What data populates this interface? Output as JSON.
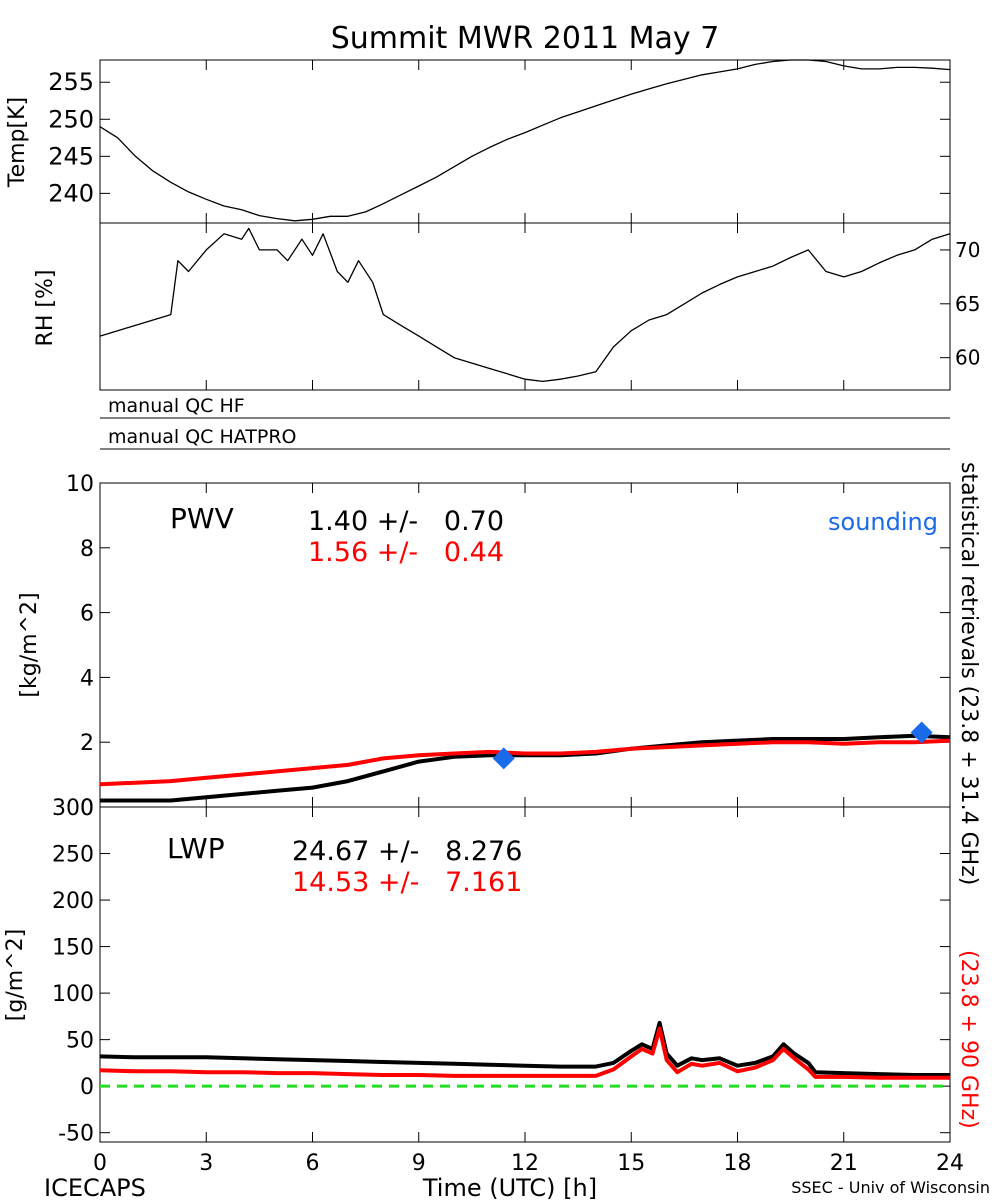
{
  "title": "Summit MWR 2011 May  7",
  "footer": {
    "left": "ICECAPS",
    "center": "Time (UTC) [h]",
    "right": "SSEC - Univ of Wisconsin"
  },
  "colors": {
    "black_series": "#000000",
    "red_series": "#ff0000",
    "sounding": "#1a6bea",
    "zero_line": "#22dd22"
  },
  "qc": {
    "hf_label": "manual  QC  HF",
    "hatpro_label": "manual  QC  HATPRO"
  },
  "side_labels": {
    "black": "statistical retrievals (23.8 + 31.4 GHz)",
    "red": "(23.8 + 90 GHz)"
  },
  "pwv_panel": {
    "name": "PWV",
    "black_stat": "1.40 +/-   0.70",
    "red_stat": "1.56 +/-   0.44",
    "sounding_label": "sounding"
  },
  "lwp_panel": {
    "name": "LWP",
    "black_stat": "24.67 +/-   8.276",
    "red_stat": "14.53 +/-   7.161"
  },
  "chart_data": [
    {
      "type": "line",
      "panel": "temperature",
      "ylabel": "Temp[K]",
      "ylim": [
        236,
        258
      ],
      "yticks": [
        240,
        245,
        250,
        255
      ],
      "xlim": [
        0,
        24
      ],
      "series": [
        {
          "color": "#000000",
          "points": [
            [
              0,
              249
            ],
            [
              0.5,
              247.5
            ],
            [
              1,
              245
            ],
            [
              1.5,
              243
            ],
            [
              2,
              241.5
            ],
            [
              2.5,
              240.2
            ],
            [
              3,
              239.2
            ],
            [
              3.5,
              238.3
            ],
            [
              4,
              237.8
            ],
            [
              4.5,
              237
            ],
            [
              5,
              236.6
            ],
            [
              5.5,
              236.3
            ],
            [
              6,
              236.5
            ],
            [
              6.5,
              236.9
            ],
            [
              7,
              236.9
            ],
            [
              7.5,
              237.5
            ],
            [
              8,
              238.6
            ],
            [
              8.5,
              239.8
            ],
            [
              9,
              241
            ],
            [
              9.5,
              242.2
            ],
            [
              10,
              243.6
            ],
            [
              10.5,
              245
            ],
            [
              11,
              246.2
            ],
            [
              11.5,
              247.3
            ],
            [
              12,
              248.2
            ],
            [
              12.5,
              249.2
            ],
            [
              13,
              250.2
            ],
            [
              13.5,
              251
            ],
            [
              14,
              251.8
            ],
            [
              14.5,
              252.6
            ],
            [
              15,
              253.4
            ],
            [
              15.5,
              254.1
            ],
            [
              16,
              254.8
            ],
            [
              16.5,
              255.4
            ],
            [
              17,
              256
            ],
            [
              17.5,
              256.4
            ],
            [
              18,
              256.8
            ],
            [
              18.5,
              257.4
            ],
            [
              19,
              257.8
            ],
            [
              19.5,
              258
            ],
            [
              20,
              258
            ],
            [
              20.5,
              257.8
            ],
            [
              21,
              257.2
            ],
            [
              21.5,
              256.8
            ],
            [
              22,
              256.8
            ],
            [
              22.5,
              257
            ],
            [
              23,
              257
            ],
            [
              23.5,
              256.9
            ],
            [
              24,
              256.7
            ]
          ]
        }
      ]
    },
    {
      "type": "line",
      "panel": "relative_humidity",
      "ylabel": "RH [%]",
      "ylim": [
        57,
        72.5
      ],
      "yticks": [
        60,
        65,
        70
      ],
      "xlim": [
        0,
        24
      ],
      "series": [
        {
          "color": "#000000",
          "points": [
            [
              0,
              62
            ],
            [
              0.5,
              62.5
            ],
            [
              1,
              63
            ],
            [
              1.5,
              63.5
            ],
            [
              2,
              64
            ],
            [
              2.2,
              69
            ],
            [
              2.5,
              68
            ],
            [
              3,
              70
            ],
            [
              3.5,
              71.5
            ],
            [
              4,
              71
            ],
            [
              4.2,
              72
            ],
            [
              4.5,
              70
            ],
            [
              5,
              70
            ],
            [
              5.3,
              69
            ],
            [
              5.7,
              71
            ],
            [
              6,
              69.5
            ],
            [
              6.3,
              71.5
            ],
            [
              6.7,
              68
            ],
            [
              7,
              67
            ],
            [
              7.3,
              69
            ],
            [
              7.7,
              67
            ],
            [
              8,
              64
            ],
            [
              8.5,
              63
            ],
            [
              9,
              62
            ],
            [
              9.5,
              61
            ],
            [
              10,
              60
            ],
            [
              10.5,
              59.5
            ],
            [
              11,
              59
            ],
            [
              11.5,
              58.5
            ],
            [
              12,
              58
            ],
            [
              12.5,
              57.8
            ],
            [
              13,
              58
            ],
            [
              13.5,
              58.3
            ],
            [
              14,
              58.7
            ],
            [
              14.5,
              61
            ],
            [
              15,
              62.5
            ],
            [
              15.5,
              63.5
            ],
            [
              16,
              64
            ],
            [
              16.5,
              65
            ],
            [
              17,
              66
            ],
            [
              17.5,
              66.8
            ],
            [
              18,
              67.5
            ],
            [
              18.5,
              68
            ],
            [
              19,
              68.5
            ],
            [
              19.5,
              69.3
            ],
            [
              20,
              70
            ],
            [
              20.5,
              68
            ],
            [
              21,
              67.5
            ],
            [
              21.5,
              68
            ],
            [
              22,
              68.8
            ],
            [
              22.5,
              69.5
            ],
            [
              23,
              70
            ],
            [
              23.5,
              71
            ],
            [
              24,
              71.5
            ]
          ]
        }
      ]
    },
    {
      "type": "line",
      "panel": "pwv",
      "ylabel": "[kg/m^2]",
      "ylim": [
        0,
        10
      ],
      "yticks": [
        0,
        2,
        4,
        6,
        8,
        10
      ],
      "xlim": [
        0,
        24
      ],
      "series": [
        {
          "name": "statistical retrievals (23.8 + 31.4 GHz)",
          "color": "#000000",
          "points": [
            [
              0,
              0.2
            ],
            [
              1,
              0.2
            ],
            [
              2,
              0.2
            ],
            [
              3,
              0.3
            ],
            [
              4,
              0.4
            ],
            [
              5,
              0.5
            ],
            [
              6,
              0.6
            ],
            [
              7,
              0.8
            ],
            [
              8,
              1.1
            ],
            [
              9,
              1.4
            ],
            [
              10,
              1.55
            ],
            [
              11,
              1.6
            ],
            [
              12,
              1.6
            ],
            [
              13,
              1.6
            ],
            [
              14,
              1.65
            ],
            [
              15,
              1.8
            ],
            [
              16,
              1.9
            ],
            [
              17,
              2.0
            ],
            [
              18,
              2.05
            ],
            [
              19,
              2.1
            ],
            [
              20,
              2.1
            ],
            [
              21,
              2.1
            ],
            [
              22,
              2.15
            ],
            [
              23,
              2.2
            ],
            [
              24,
              2.15
            ]
          ]
        },
        {
          "name": "(23.8 + 90 GHz)",
          "color": "#ff0000",
          "points": [
            [
              0,
              0.7
            ],
            [
              1,
              0.75
            ],
            [
              2,
              0.8
            ],
            [
              3,
              0.9
            ],
            [
              4,
              1.0
            ],
            [
              5,
              1.1
            ],
            [
              6,
              1.2
            ],
            [
              7,
              1.3
            ],
            [
              8,
              1.5
            ],
            [
              9,
              1.6
            ],
            [
              10,
              1.65
            ],
            [
              11,
              1.7
            ],
            [
              12,
              1.65
            ],
            [
              13,
              1.65
            ],
            [
              14,
              1.7
            ],
            [
              15,
              1.8
            ],
            [
              16,
              1.85
            ],
            [
              17,
              1.9
            ],
            [
              18,
              1.95
            ],
            [
              19,
              2.0
            ],
            [
              20,
              2.0
            ],
            [
              21,
              1.95
            ],
            [
              22,
              2.0
            ],
            [
              23,
              2.0
            ],
            [
              24,
              2.05
            ]
          ]
        }
      ],
      "sounding_points": [
        [
          11.4,
          1.5
        ],
        [
          23.2,
          2.3
        ]
      ]
    },
    {
      "type": "line",
      "panel": "lwp",
      "ylabel": "[g/m^2]",
      "xlabel": "Time (UTC) [h]",
      "ylim": [
        -60,
        300
      ],
      "yticks": [
        -50,
        0,
        50,
        100,
        150,
        200,
        250,
        300
      ],
      "xlim": [
        0,
        24
      ],
      "xticks": [
        0,
        3,
        6,
        9,
        12,
        15,
        18,
        21,
        24
      ],
      "series": [
        {
          "name": "statistical retrievals (23.8 + 31.4 GHz)",
          "color": "#000000",
          "points": [
            [
              0,
              32
            ],
            [
              1,
              31
            ],
            [
              2,
              31
            ],
            [
              3,
              31
            ],
            [
              4,
              30
            ],
            [
              5,
              29
            ],
            [
              6,
              28
            ],
            [
              7,
              27
            ],
            [
              8,
              26
            ],
            [
              9,
              25
            ],
            [
              10,
              24
            ],
            [
              11,
              23
            ],
            [
              12,
              22
            ],
            [
              13,
              21
            ],
            [
              14,
              21
            ],
            [
              14.5,
              25
            ],
            [
              15,
              38
            ],
            [
              15.3,
              45
            ],
            [
              15.6,
              40
            ],
            [
              15.8,
              68
            ],
            [
              16,
              35
            ],
            [
              16.3,
              22
            ],
            [
              16.7,
              30
            ],
            [
              17,
              28
            ],
            [
              17.5,
              30
            ],
            [
              18,
              22
            ],
            [
              18.5,
              25
            ],
            [
              19,
              32
            ],
            [
              19.3,
              45
            ],
            [
              19.6,
              35
            ],
            [
              20,
              25
            ],
            [
              20.2,
              15
            ],
            [
              21,
              14
            ],
            [
              22,
              13
            ],
            [
              23,
              12
            ],
            [
              24,
              12
            ]
          ]
        },
        {
          "name": "(23.8 + 90 GHz)",
          "color": "#ff0000",
          "points": [
            [
              0,
              17
            ],
            [
              1,
              16
            ],
            [
              2,
              16
            ],
            [
              3,
              15
            ],
            [
              4,
              15
            ],
            [
              5,
              14
            ],
            [
              6,
              14
            ],
            [
              7,
              13
            ],
            [
              8,
              12
            ],
            [
              9,
              12
            ],
            [
              10,
              11
            ],
            [
              11,
              11
            ],
            [
              12,
              11
            ],
            [
              13,
              11
            ],
            [
              14,
              11
            ],
            [
              14.5,
              18
            ],
            [
              15,
              32
            ],
            [
              15.3,
              40
            ],
            [
              15.6,
              35
            ],
            [
              15.8,
              62
            ],
            [
              16,
              28
            ],
            [
              16.3,
              15
            ],
            [
              16.7,
              24
            ],
            [
              17,
              22
            ],
            [
              17.5,
              25
            ],
            [
              18,
              16
            ],
            [
              18.5,
              20
            ],
            [
              19,
              28
            ],
            [
              19.3,
              40
            ],
            [
              19.6,
              30
            ],
            [
              20,
              18
            ],
            [
              20.2,
              10
            ],
            [
              21,
              10
            ],
            [
              22,
              9
            ],
            [
              23,
              9
            ],
            [
              24,
              9
            ]
          ]
        }
      ],
      "zero_line": 0
    }
  ]
}
